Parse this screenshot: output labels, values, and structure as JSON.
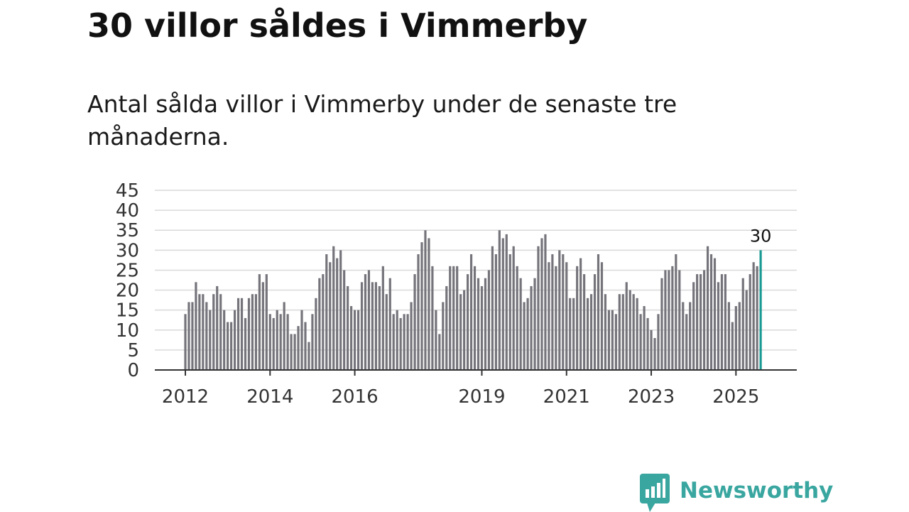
{
  "header": {
    "title": "30 villor såldes i Vimmerby",
    "subtitle": "Antal sålda villor i Vimmerby under de senaste tre månaderna."
  },
  "colors": {
    "bar": "#75747b",
    "highlight": "#1a9a92",
    "grid": "#d9d9d9",
    "axis": "#333333",
    "text": "#333333",
    "brand": "#3aa6a0"
  },
  "chart_data": {
    "type": "bar",
    "title": "30 villor såldes i Vimmerby",
    "subtitle": "Antal sålda villor i Vimmerby under de senaste tre månaderna.",
    "xlabel": "",
    "ylabel": "",
    "ylim": [
      0,
      45
    ],
    "yticks": [
      "0",
      "5",
      "10",
      "15",
      "20",
      "25",
      "30",
      "35",
      "40",
      "45"
    ],
    "grid": true,
    "legend": "none",
    "start_period": "2012-01",
    "xticks": [
      {
        "label": "2012",
        "index": 0
      },
      {
        "label": "2014",
        "index": 24
      },
      {
        "label": "2016",
        "index": 48
      },
      {
        "label": "2019",
        "index": 84
      },
      {
        "label": "2021",
        "index": 108
      },
      {
        "label": "2023",
        "index": 132
      },
      {
        "label": "2025",
        "index": 156
      }
    ],
    "values": [
      14,
      17,
      17,
      22,
      19,
      19,
      17,
      15,
      19,
      21,
      19,
      15,
      12,
      12,
      15,
      18,
      18,
      13,
      18,
      19,
      19,
      24,
      22,
      24,
      14,
      13,
      15,
      14,
      17,
      14,
      9,
      9,
      11,
      15,
      12,
      7,
      14,
      18,
      23,
      24,
      29,
      27,
      31,
      28,
      30,
      25,
      21,
      16,
      15,
      15,
      22,
      24,
      25,
      22,
      22,
      21,
      26,
      19,
      23,
      14,
      15,
      13,
      14,
      14,
      17,
      24,
      29,
      32,
      35,
      33,
      26,
      15,
      9,
      17,
      21,
      26,
      26,
      26,
      19,
      20,
      24,
      29,
      26,
      23,
      21,
      23,
      25,
      31,
      29,
      35,
      33,
      34,
      29,
      31,
      26,
      23,
      17,
      18,
      21,
      23,
      31,
      33,
      34,
      27,
      29,
      26,
      30,
      29,
      27,
      18,
      18,
      26,
      28,
      24,
      18,
      19,
      24,
      29,
      27,
      19,
      15,
      15,
      14,
      19,
      19,
      22,
      20,
      19,
      18,
      14,
      16,
      13,
      10,
      8,
      14,
      23,
      25,
      25,
      26,
      29,
      25,
      17,
      14,
      17,
      22,
      24,
      24,
      25,
      31,
      29,
      28,
      22,
      24,
      24,
      17,
      12,
      16,
      17,
      23,
      20,
      24,
      27,
      26,
      30
    ],
    "highlight_last": true,
    "annotations": [
      {
        "label": "30",
        "target": "last_bar"
      }
    ]
  },
  "brand": {
    "name": "Newsworthy",
    "logo_icon": "bar-chart-speech-bubble-icon"
  }
}
